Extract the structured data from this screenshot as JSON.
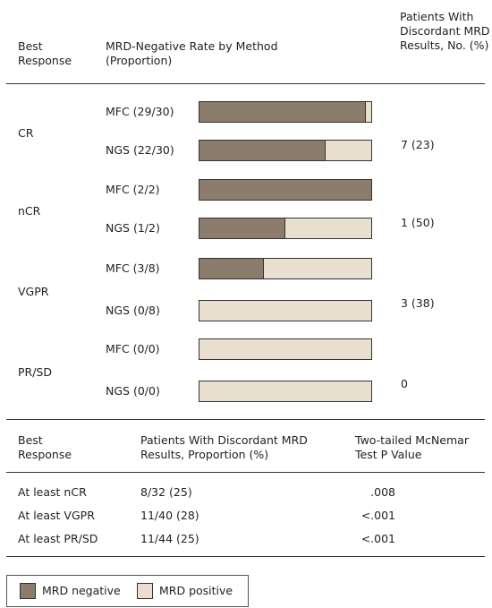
{
  "header": {
    "response": "Best Response",
    "rate": "MRD-Negative Rate by Method (Proportion)",
    "discordant": "Patients With Discordant MRD Results, No. (%)"
  },
  "groups": [
    {
      "label": "CR",
      "discordant": "7 (23)",
      "rows": [
        {
          "label": "MFC (29/30)",
          "negative": 29,
          "total": 30
        },
        {
          "label": "NGS (22/30)",
          "negative": 22,
          "total": 30
        }
      ]
    },
    {
      "label": "nCR",
      "discordant": "1 (50)",
      "rows": [
        {
          "label": "MFC (2/2)",
          "negative": 2,
          "total": 2
        },
        {
          "label": "NGS (1/2)",
          "negative": 1,
          "total": 2
        }
      ]
    },
    {
      "label": "VGPR",
      "discordant": "3 (38)",
      "rows": [
        {
          "label": "MFC (3/8)",
          "negative": 3,
          "total": 8
        },
        {
          "label": "NGS (0/8)",
          "negative": 0,
          "total": 8
        }
      ]
    },
    {
      "label": "PR/SD",
      "discordant": "0",
      "rows": [
        {
          "label": "MFC (0/0)",
          "negative": 0,
          "total": 0
        },
        {
          "label": "NGS (0/0)",
          "negative": 0,
          "total": 0
        }
      ]
    }
  ],
  "table": {
    "header": [
      "Best Response",
      "Patients With Discordant MRD Results, Proportion (%)",
      "Two-tailed McNemar Test P Value"
    ],
    "rows": [
      [
        "At least nCR",
        "8/32 (25)",
        ".008"
      ],
      [
        "At least VGPR",
        "11/40 (28)",
        "<.001"
      ],
      [
        "At least PR/SD",
        "11/44 (25)",
        "<.001"
      ]
    ]
  },
  "legend": {
    "negative": "MRD negative",
    "positive": "MRD positive"
  }
}
